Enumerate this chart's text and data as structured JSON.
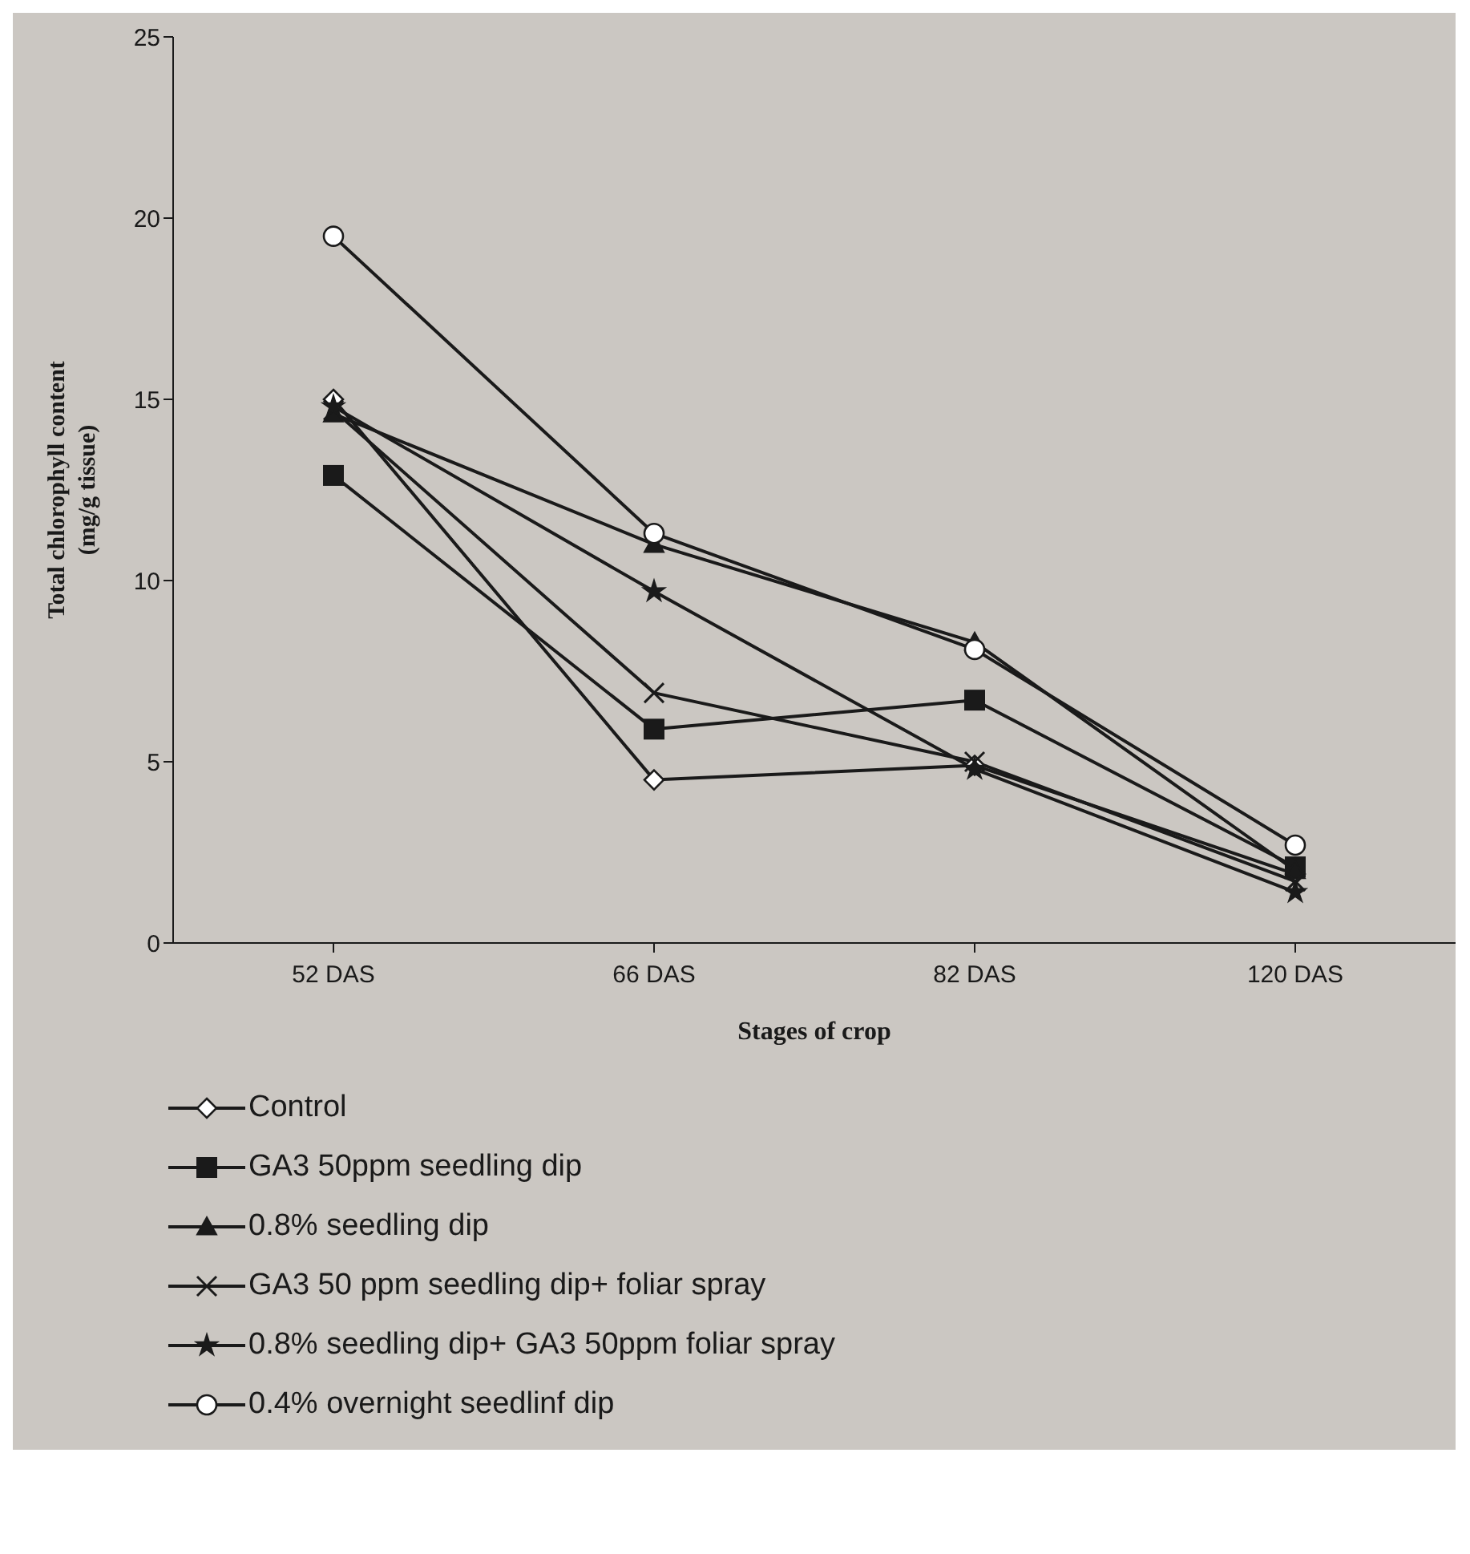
{
  "chart_data": {
    "type": "line",
    "xlabel": "Stages of crop",
    "ylabel": "Total chlorophyll content\n(mg/g tissue)",
    "categories": [
      "52 DAS",
      "66 DAS",
      "82 DAS",
      "120 DAS"
    ],
    "series": [
      {
        "name": "Control",
        "color": "#1a1a1a",
        "marker": "diamond",
        "values": [
          15.0,
          4.5,
          4.9,
          1.9
        ]
      },
      {
        "name": "GA3 50ppm seedling dip",
        "color": "#1a1a1a",
        "marker": "square",
        "values": [
          12.9,
          5.9,
          6.7,
          2.1
        ]
      },
      {
        "name": "0.8%  seedling dip",
        "color": "#1a1a1a",
        "marker": "triangle",
        "values": [
          14.6,
          11.0,
          8.3,
          2.0
        ]
      },
      {
        "name": "GA3 50 ppm seedling dip+ foliar spray",
        "color": "#1a1a1a",
        "marker": "cross",
        "values": [
          14.7,
          6.9,
          5.0,
          1.7
        ]
      },
      {
        "name": "0.8% seedling dip+ GA3 50ppm foliar spray",
        "color": "#1a1a1a",
        "marker": "star",
        "values": [
          14.8,
          9.7,
          4.8,
          1.4
        ]
      },
      {
        "name": "0.4% overnight seedlinf dip",
        "color": "#1a1a1a",
        "marker": "circle",
        "values": [
          19.5,
          11.3,
          8.1,
          2.7
        ]
      }
    ],
    "ylim": [
      0,
      25
    ],
    "yticks": [
      0,
      5,
      10,
      15,
      20,
      25
    ],
    "grid": false,
    "legend": "bottom",
    "line_style": "solid"
  }
}
